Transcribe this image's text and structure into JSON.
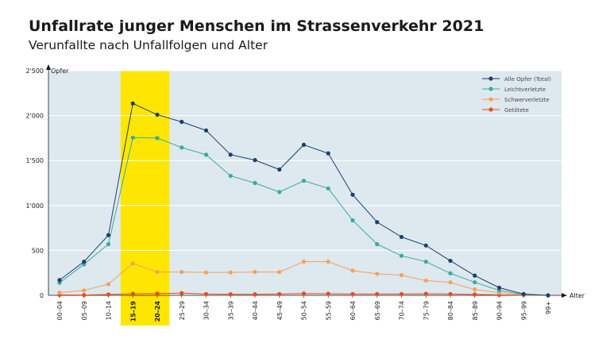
{
  "chart_data": {
    "type": "line",
    "title": "Unfallrate junger Menschen im Strassenverkehr 2021",
    "subtitle": "Verunfallte nach Unfallfolgen und Alter",
    "ylabel": "Opfer",
    "xlabel": "Alter",
    "ylim": [
      0,
      2500
    ],
    "y_ticks": [
      0,
      500,
      1000,
      1500,
      2000,
      2500
    ],
    "y_tick_labels": [
      "0",
      "500",
      "1'000",
      "1'500",
      "2'000",
      "2'500"
    ],
    "categories": [
      "00–04",
      "05–09",
      "10–14",
      "15–19",
      "20–24",
      "25–29",
      "30–34",
      "35–39",
      "40–44",
      "45–49",
      "50–54",
      "55–59",
      "60–64",
      "65–69",
      "70–74",
      "75–79",
      "80–84",
      "85–89",
      "90–94",
      "95–99",
      "99+"
    ],
    "highlight": {
      "categories": [
        "15–19",
        "20–24"
      ],
      "color": "#ffe600"
    },
    "grid": true,
    "legend_position": "top-right",
    "colors": {
      "plot_background": "#dde8ef",
      "alle": "#1f3e6b",
      "leicht": "#3aab9c",
      "schwer": "#f5a05c",
      "getoetet": "#ea4c1c",
      "text": "#1a1a1a"
    },
    "series": [
      {
        "name": "Alle Opfer (Total)",
        "color_key": "alle",
        "values": [
          170,
          375,
          670,
          2135,
          2010,
          1930,
          1835,
          1565,
          1505,
          1400,
          1675,
          1580,
          1120,
          815,
          650,
          555,
          385,
          220,
          85,
          15,
          0
        ]
      },
      {
        "name": "Leichtverletzte",
        "color_key": "leicht",
        "values": [
          140,
          345,
          570,
          1755,
          1750,
          1645,
          1565,
          1330,
          1250,
          1150,
          1275,
          1190,
          835,
          570,
          440,
          375,
          245,
          145,
          55,
          10,
          0
        ]
      },
      {
        "name": "Schwerverletzte",
        "color_key": "schwer",
        "values": [
          30,
          55,
          125,
          355,
          260,
          260,
          255,
          255,
          260,
          260,
          375,
          375,
          275,
          240,
          225,
          165,
          145,
          65,
          30,
          5,
          0
        ]
      },
      {
        "name": "Getötete",
        "color_key": "getoetet",
        "values": [
          5,
          3,
          10,
          18,
          20,
          25,
          15,
          12,
          12,
          15,
          20,
          18,
          15,
          15,
          15,
          18,
          15,
          10,
          5,
          2,
          0
        ]
      }
    ]
  }
}
